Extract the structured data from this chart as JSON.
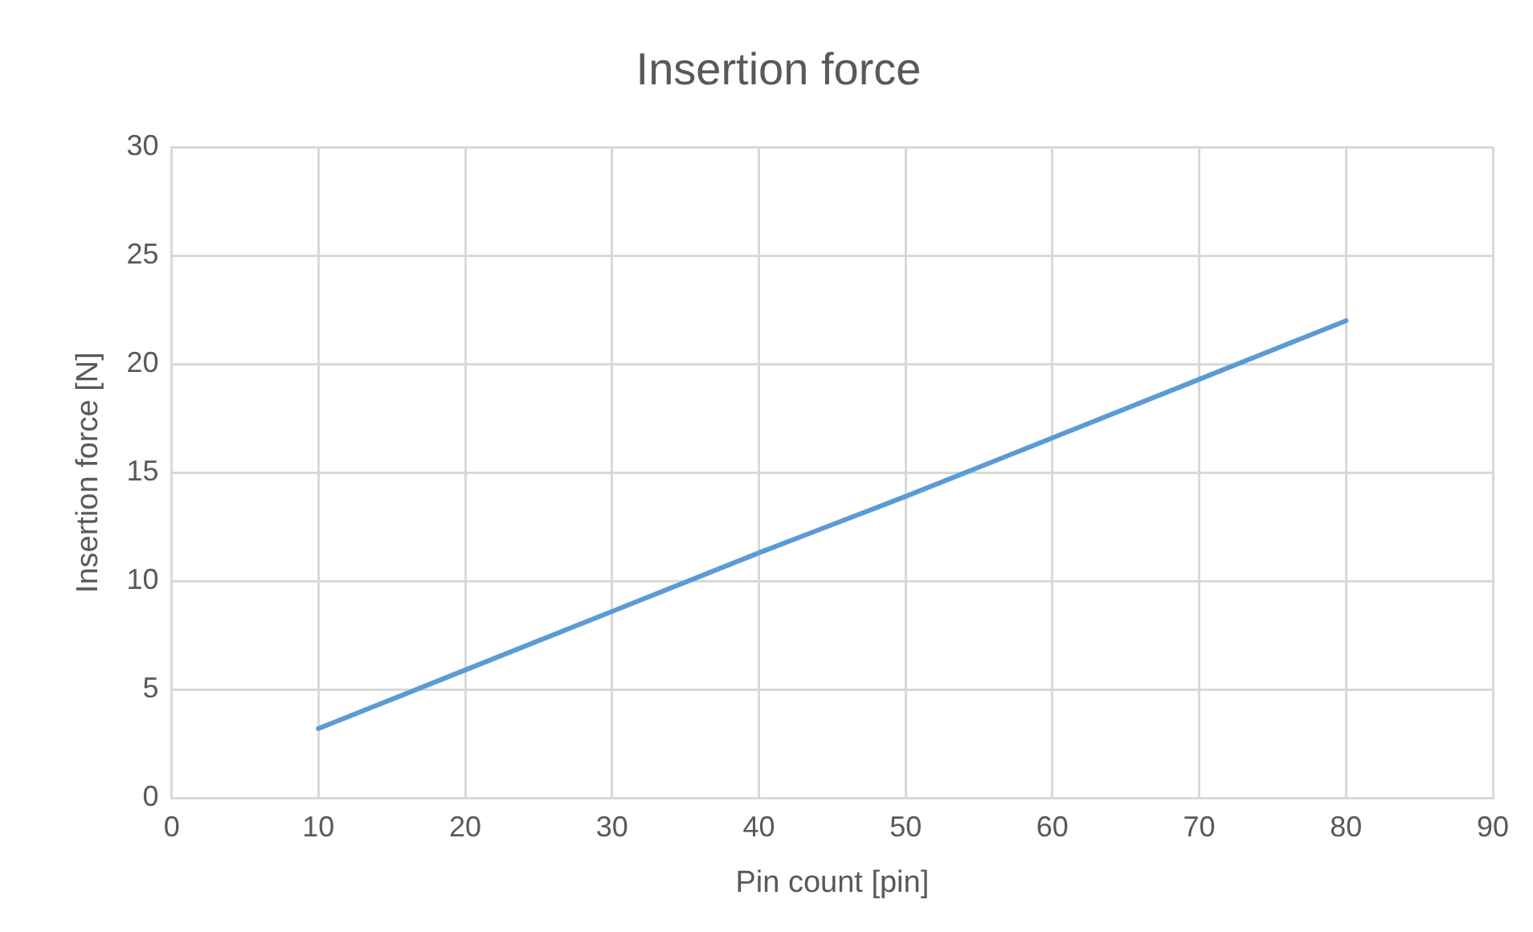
{
  "chart_data": {
    "type": "line",
    "title": "Insertion force",
    "xlabel": "Pin count [pin]",
    "ylabel": "Insertion force [N]",
    "x": [
      10,
      20,
      30,
      40,
      50,
      60,
      70,
      80
    ],
    "series": [
      {
        "color": "#5b9bd5",
        "values": [
          3.2,
          5.9,
          8.6,
          11.3,
          13.9,
          16.6,
          19.3,
          22.0
        ]
      }
    ],
    "xlim": [
      0,
      90
    ],
    "xticks": [
      0,
      10,
      20,
      30,
      40,
      50,
      60,
      70,
      80,
      90
    ],
    "ylim": [
      0,
      30
    ],
    "yticks": [
      0,
      5,
      10,
      15,
      20,
      25,
      30
    ],
    "grid": true,
    "legend": false,
    "marker": "none",
    "line_style": "solid"
  }
}
